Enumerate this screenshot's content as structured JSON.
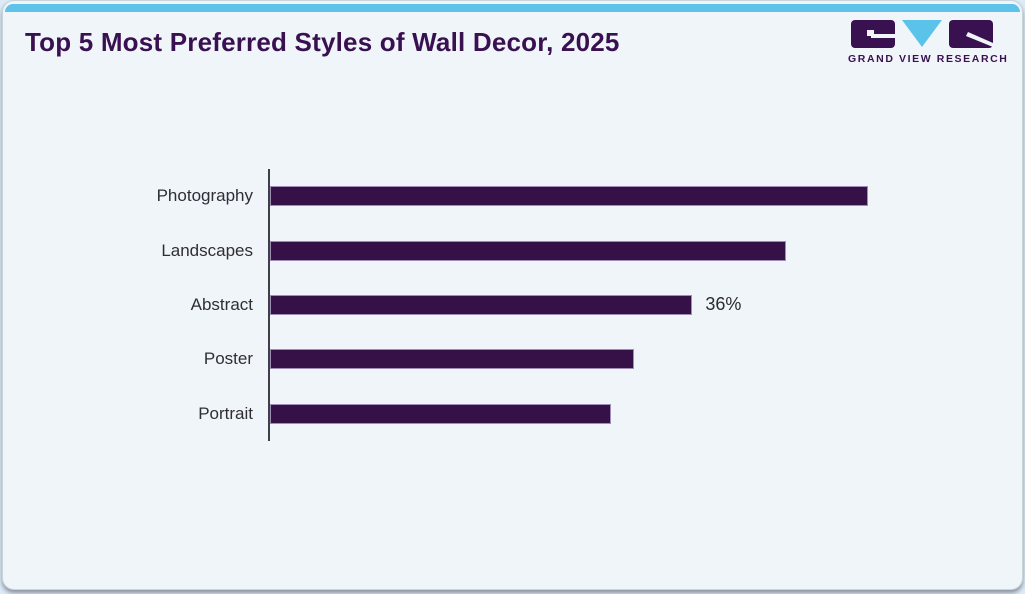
{
  "page": {
    "topbar_color": "#5ec2e9",
    "card_background": "#f0f5fa"
  },
  "header": {
    "title": "Top 5 Most Preferred Styles of Wall Decor, 2025",
    "title_color": "#3a1150",
    "logo": {
      "brand_text": "GRAND VIEW RESEARCH",
      "purple": "#3a1150",
      "blue": "#5bc3ea"
    }
  },
  "chart_data": {
    "type": "bar",
    "orientation": "horizontal",
    "title": "Top 5 Most Preferred Styles of Wall Decor, 2025",
    "categories": [
      "Photography",
      "Landscapes",
      "Abstract",
      "Poster",
      "Portrait"
    ],
    "values": [
      51,
      44,
      36,
      31,
      29
    ],
    "value_unit": "%",
    "data_labels": [
      "",
      "",
      "36%",
      "",
      ""
    ],
    "xlabel": "",
    "ylabel": "",
    "xlim": [
      0,
      63.2
    ],
    "grid": false,
    "legend": false,
    "bar_color": "#351148",
    "bar_border_color": "#a08cb8",
    "axis_color": "#3f3f47",
    "label_color": "#2e2e36"
  }
}
